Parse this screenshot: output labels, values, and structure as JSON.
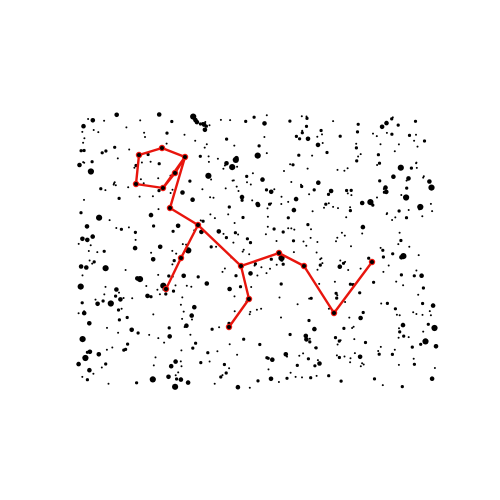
{
  "colors": {
    "background": "#ffffff",
    "stars": "#000000",
    "constellation": "#e8150d"
  }
}
